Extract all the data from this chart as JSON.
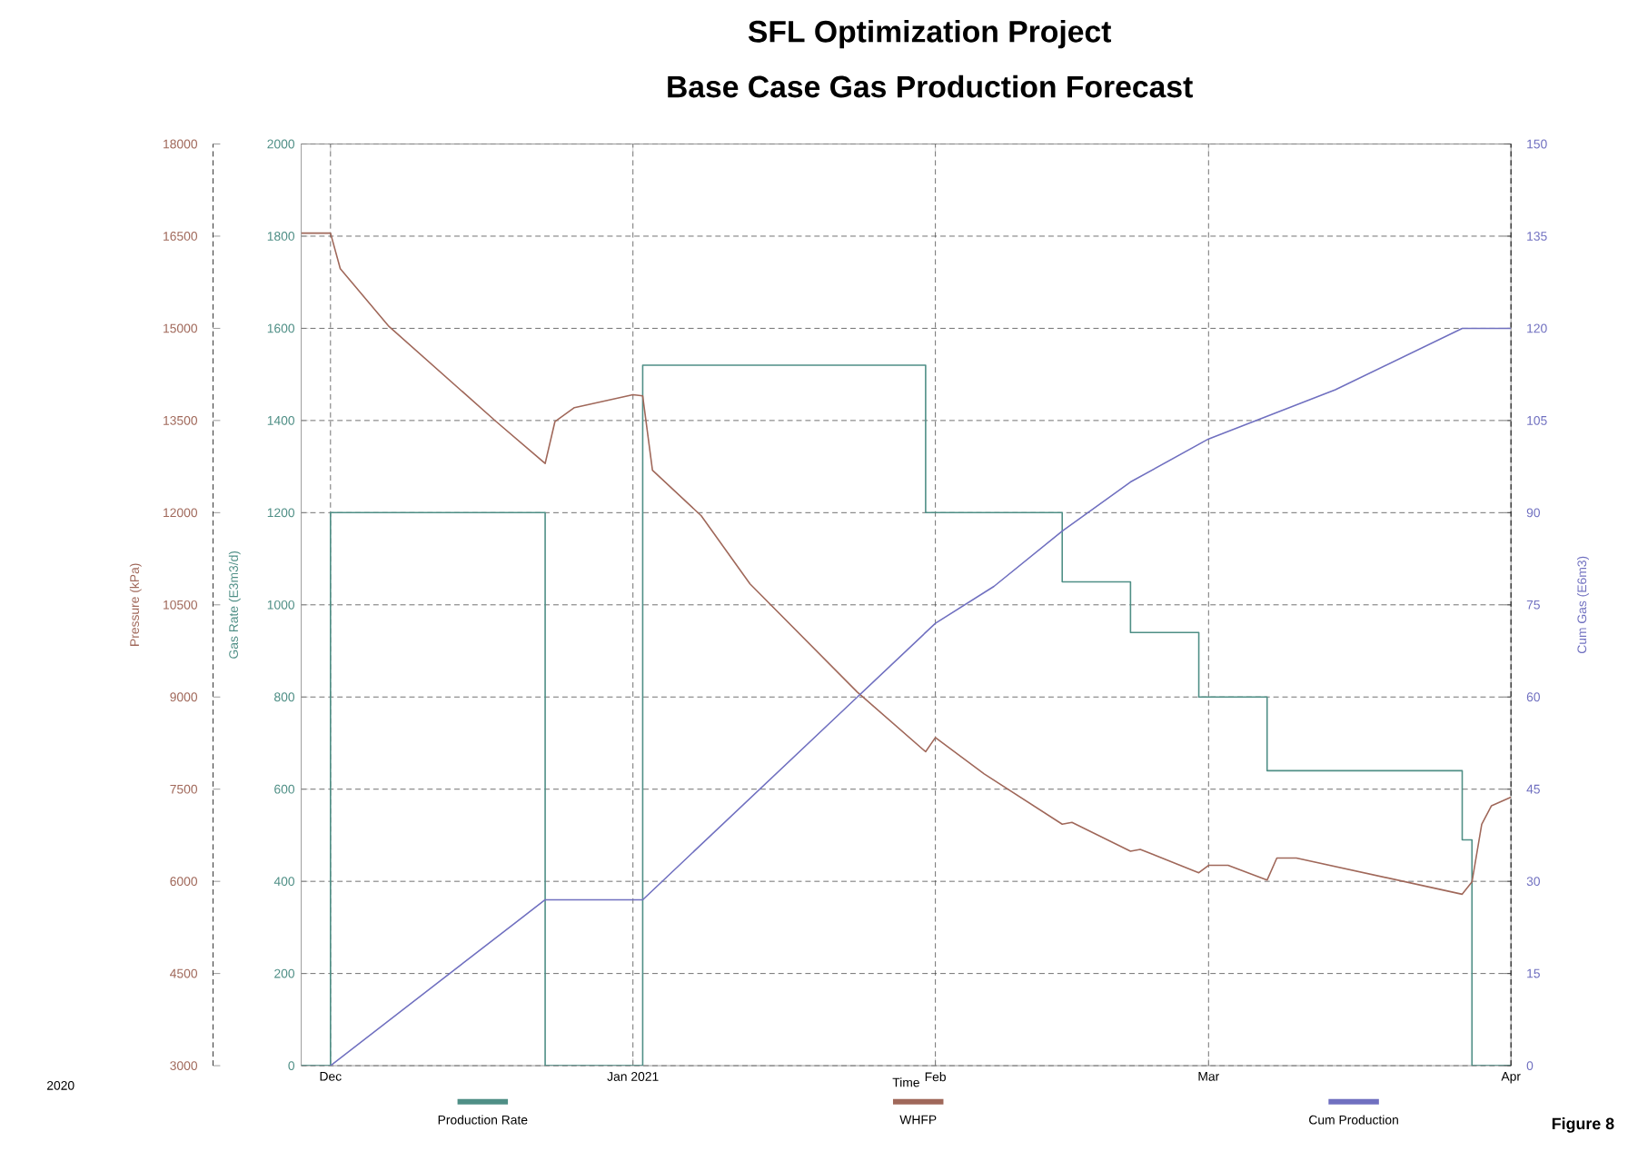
{
  "chart_data": {
    "type": "line",
    "title": "SFL Optimization Project",
    "subtitle": "Base Case Gas Production Forecast",
    "xlabel": "Time",
    "ylabel": "Gas Rate (E3m3/d)",
    "y2label": "Pressure (kPa)",
    "y3label": "Cum Gas (E6m3)",
    "xlim": [
      "2020-11-28",
      "2021-04-01"
    ],
    "xticks": [
      {
        "value": "2020-12-01",
        "label": "Dec"
      },
      {
        "value": "2021-01-01",
        "label": "Jan 2021"
      },
      {
        "value": "2021-02-01",
        "label": "Feb"
      },
      {
        "value": "2021-03-01",
        "label": "Mar"
      },
      {
        "value": "2021-04-01",
        "label": "Apr"
      }
    ],
    "ylim": [
      0,
      2000
    ],
    "yticks": [
      0,
      200,
      400,
      600,
      800,
      1000,
      1200,
      1400,
      1600,
      1800,
      2000
    ],
    "y2lim": [
      3000,
      18000
    ],
    "y2ticks": [
      3000,
      4500,
      6000,
      7500,
      9000,
      10500,
      12000,
      13500,
      15000,
      16500,
      18000
    ],
    "y3lim": [
      0,
      150
    ],
    "y3ticks": [
      0,
      15,
      30,
      45,
      60,
      75,
      90,
      105,
      120,
      135,
      150
    ],
    "grid": true,
    "legend": "bottom",
    "annotations": [
      "2020",
      "Figure 8"
    ],
    "series": [
      {
        "name": "Production Rate",
        "type": "step",
        "color": "#4f8f86",
        "x": [
          "2020-11-28",
          "2020-12-01",
          "2020-12-23",
          "2021-01-02",
          "2021-01-31",
          "2021-02-14",
          "2021-02-21",
          "2021-02-28",
          "2021-03-07",
          "2021-03-27",
          "2021-03-28",
          "2021-04-01"
        ],
        "values": [
          0,
          1200,
          0,
          1520,
          1200,
          1050,
          940,
          800,
          640,
          490,
          0,
          0
        ]
      },
      {
        "name": "WHFP",
        "type": "line",
        "axis": "y2",
        "color": "#a0685a",
        "x": [
          "2020-11-28",
          "2020-12-01",
          "2020-12-02",
          "2020-12-07",
          "2020-12-18",
          "2020-12-23",
          "2020-12-24",
          "2020-12-26",
          "2021-01-01",
          "2021-01-02",
          "2021-01-03",
          "2021-01-08",
          "2021-01-13",
          "2021-01-24",
          "2021-01-31",
          "2021-02-01",
          "2021-02-06",
          "2021-02-14",
          "2021-02-15",
          "2021-02-21",
          "2021-02-22",
          "2021-02-28",
          "2021-03-01",
          "2021-03-03",
          "2021-03-07",
          "2021-03-08",
          "2021-03-10",
          "2021-03-27",
          "2021-03-28",
          "2021-03-29",
          "2021-03-30",
          "2021-04-01"
        ],
        "values": [
          16550,
          16550,
          15970,
          15030,
          13480,
          12800,
          13480,
          13710,
          13920,
          13900,
          12690,
          11950,
          10840,
          9080,
          8110,
          8340,
          7750,
          6930,
          6960,
          6490,
          6520,
          6140,
          6260,
          6260,
          6020,
          6380,
          6380,
          5790,
          5990,
          6930,
          7230,
          7370
        ]
      },
      {
        "name": "Cum Production",
        "type": "line",
        "axis": "y3",
        "color": "#7070c0",
        "x": [
          "2020-12-01",
          "2020-12-23",
          "2021-01-02",
          "2021-01-24",
          "2021-02-01",
          "2021-02-07",
          "2021-02-14",
          "2021-02-21",
          "2021-03-01",
          "2021-03-14",
          "2021-03-27",
          "2021-04-01"
        ],
        "values": [
          0,
          27,
          27,
          60,
          72,
          78,
          87,
          95,
          102,
          110,
          120,
          120
        ]
      }
    ]
  }
}
